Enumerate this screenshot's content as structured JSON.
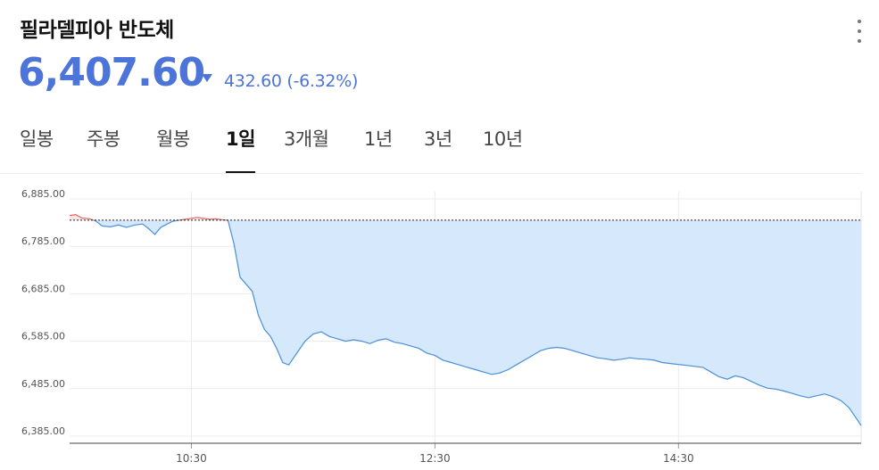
{
  "header": {
    "title": "필라델피아 반도체",
    "price": "6,407.60",
    "change": "432.60 (-6.32%)",
    "change_direction": "down"
  },
  "colors": {
    "down": "#4d74d8",
    "line": "#4a8fd9",
    "fill": "#d6e8fb",
    "above_line": "#e06666",
    "above_fill": "#fbe3e3"
  },
  "tabs": [
    {
      "label": "일봉",
      "active": false
    },
    {
      "label": "주봉",
      "active": false
    },
    {
      "label": "월봉",
      "active": false
    },
    {
      "label": "1일",
      "active": true
    },
    {
      "label": "3개월",
      "active": false
    },
    {
      "label": "1년",
      "active": false
    },
    {
      "label": "3년",
      "active": false
    },
    {
      "label": "10년",
      "active": false
    }
  ],
  "chart_data": {
    "type": "area",
    "title": "",
    "xlabel": "",
    "ylabel": "",
    "xlim": [
      "09:30",
      "16:00"
    ],
    "ylim": [
      6370,
      6900
    ],
    "y_ticks": [
      "6,885.00",
      "6,785.00",
      "6,685.00",
      "6,585.00",
      "6,485.00",
      "6,385.00"
    ],
    "y_tick_values": [
      6885,
      6785,
      6685,
      6585,
      6485,
      6385
    ],
    "x_ticks": [
      "10:30",
      "12:30",
      "14:30"
    ],
    "x_tick_values": [
      "10:30",
      "12:30",
      "14:30"
    ],
    "grid": true,
    "legend": "none",
    "reference_value": 6840.2,
    "series": [
      {
        "x": [
          "09:30",
          "09:33",
          "09:36",
          "09:40",
          "09:43",
          "09:46",
          "09:50",
          "09:54",
          "09:58",
          "10:02",
          "10:06",
          "10:09",
          "10:12",
          "10:15",
          "10:18",
          "10:21",
          "10:24",
          "10:27",
          "10:30",
          "10:33",
          "10:36",
          "10:39",
          "10:42",
          "10:45",
          "10:48",
          "10:51",
          "10:54",
          "10:57",
          "11:00",
          "11:03",
          "11:06",
          "11:09",
          "11:12",
          "11:15",
          "11:18",
          "11:22",
          "11:26",
          "11:30",
          "11:34",
          "11:38",
          "11:42",
          "11:46",
          "11:50",
          "11:54",
          "11:58",
          "12:02",
          "12:06",
          "12:10",
          "12:14",
          "12:18",
          "12:22",
          "12:26",
          "12:30",
          "12:34",
          "12:38",
          "12:42",
          "12:46",
          "12:50",
          "12:54",
          "12:58",
          "13:02",
          "13:06",
          "13:10",
          "13:14",
          "13:18",
          "13:22",
          "13:26",
          "13:30",
          "13:34",
          "13:38",
          "13:42",
          "13:46",
          "13:50",
          "13:54",
          "13:58",
          "14:02",
          "14:06",
          "14:10",
          "14:14",
          "14:18",
          "14:22",
          "14:26",
          "14:30",
          "14:34",
          "14:38",
          "14:42",
          "14:46",
          "14:50",
          "14:54",
          "14:58",
          "15:02",
          "15:06",
          "15:10",
          "15:14",
          "15:18",
          "15:22",
          "15:26",
          "15:30",
          "15:34",
          "15:38",
          "15:42",
          "15:46",
          "15:50",
          "15:54",
          "15:58",
          "16:00"
        ],
        "values": [
          6850,
          6852,
          6845,
          6843,
          6838,
          6828,
          6826,
          6830,
          6825,
          6830,
          6832,
          6822,
          6810,
          6825,
          6832,
          6838,
          6840,
          6842,
          6844,
          6846,
          6844,
          6842,
          6843,
          6841,
          6840,
          6790,
          6720,
          6705,
          6690,
          6640,
          6610,
          6595,
          6570,
          6540,
          6535,
          6560,
          6585,
          6600,
          6605,
          6595,
          6590,
          6585,
          6588,
          6585,
          6580,
          6587,
          6590,
          6583,
          6580,
          6575,
          6570,
          6560,
          6555,
          6545,
          6540,
          6535,
          6530,
          6525,
          6520,
          6515,
          6518,
          6525,
          6535,
          6545,
          6555,
          6565,
          6570,
          6572,
          6570,
          6565,
          6560,
          6555,
          6550,
          6548,
          6545,
          6547,
          6550,
          6548,
          6547,
          6545,
          6540,
          6538,
          6536,
          6534,
          6532,
          6530,
          6520,
          6510,
          6505,
          6512,
          6508,
          6500,
          6492,
          6486,
          6484,
          6480,
          6475,
          6470,
          6466,
          6470,
          6474,
          6468,
          6460,
          6445,
          6420,
          6407
        ]
      }
    ]
  }
}
